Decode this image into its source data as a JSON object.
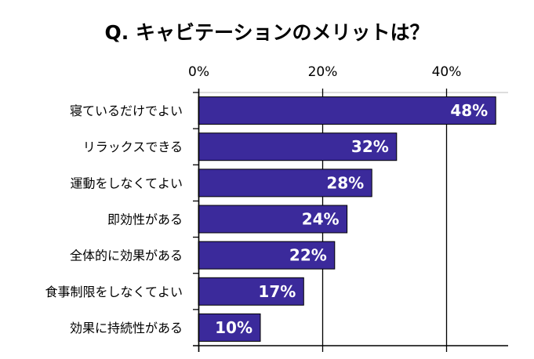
{
  "chart_data": {
    "type": "bar",
    "orientation": "horizontal",
    "title": "Q. キャビテーションのメリットは？",
    "categories": [
      "寝ているだけでよい",
      "リラックスできる",
      "運動をしなくてよい",
      "即効性がある",
      "全体的に効果がある",
      "食事制限をしなくてよい",
      "効果に持続性がある"
    ],
    "values": [
      48,
      32,
      28,
      24,
      22,
      17,
      10
    ],
    "data_labels": [
      "48%",
      "32%",
      "28%",
      "24%",
      "22%",
      "17%",
      "10%"
    ],
    "xticks": [
      "0%",
      "20%",
      "40%"
    ],
    "xtick_values": [
      0,
      20,
      40
    ],
    "xlim": [
      0,
      50
    ],
    "xaxis_position": "top",
    "grid": true,
    "xlabel": "",
    "ylabel": "",
    "bar_color": "#3b2a9b",
    "label_color": "#ffffff"
  }
}
